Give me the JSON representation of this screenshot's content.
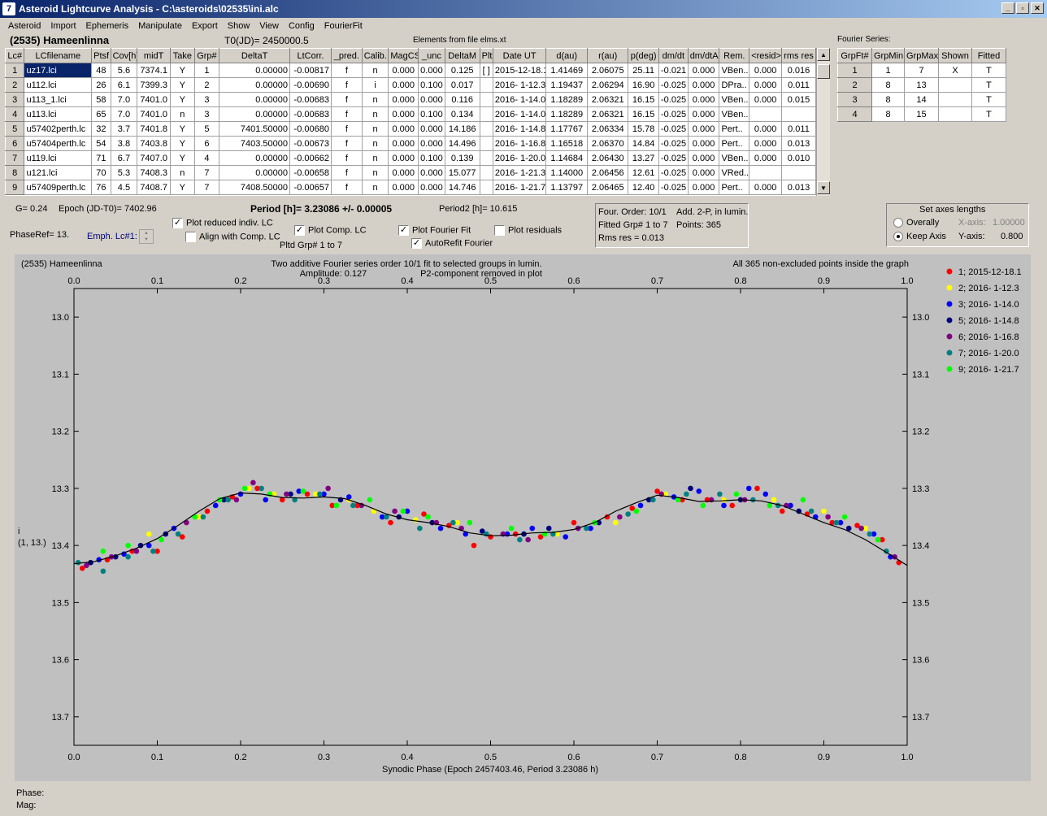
{
  "window": {
    "title": "Asteroid Lightcurve Analysis - C:\\asteroids\\02535\\ini.alc",
    "icon_label": "7",
    "btn_min": "_",
    "btn_max": "▫",
    "btn_close": "✕"
  },
  "menu": [
    "Asteroid",
    "Import",
    "Ephemeris",
    "Manipulate",
    "Export",
    "Show",
    "View",
    "Config",
    "FourierFit"
  ],
  "header": {
    "asteroid": "(2535) Hameenlinna",
    "t0": "T0(JD)= 2450000.5",
    "elements": "Elements from file elms.xt"
  },
  "lc_table": {
    "columns": [
      "Lc#",
      "LCfilename",
      "Ptsf",
      "Cov[h]",
      "midT",
      "Take",
      "Grp#",
      "DeltaT",
      "LtCorr.",
      "_pred.",
      "Calib.",
      "MagCS",
      "_unc",
      "DeltaM",
      "Plt",
      "Date UT",
      "d(au)",
      "r(au)",
      "p(deg)",
      "dm/dt",
      "dm/dtA",
      "Rem.",
      "<resid>",
      "rms res"
    ],
    "rows": [
      [
        "1",
        "uz17.lci",
        "48",
        "5.6",
        "7374.1",
        "Y",
        "1",
        "0.00000",
        "-0.00817",
        "f",
        "n",
        "0.000",
        "0.000",
        "0.125",
        "[ ]",
        "2015-12-18.1",
        "1.41469",
        "2.06075",
        "25.11",
        "-0.021",
        "0.000",
        "VBen..",
        "0.000",
        "0.016"
      ],
      [
        "2",
        "u112.lci",
        "26",
        "6.1",
        "7399.3",
        "Y",
        "2",
        "0.00000",
        "-0.00690",
        "f",
        "i",
        "0.000",
        "0.100",
        "0.017",
        "",
        "2016- 1-12.3",
        "1.19437",
        "2.06294",
        "16.90",
        "-0.025",
        "0.000",
        "DPra..",
        "0.000",
        "0.011"
      ],
      [
        "3",
        "u113_1.lci",
        "58",
        "7.0",
        "7401.0",
        "Y",
        "3",
        "0.00000",
        "-0.00683",
        "f",
        "n",
        "0.000",
        "0.000",
        "0.116",
        "",
        "2016- 1-14.0",
        "1.18289",
        "2.06321",
        "16.15",
        "-0.025",
        "0.000",
        "VBen..",
        "0.000",
        "0.015"
      ],
      [
        "4",
        "u113.lci",
        "65",
        "7.0",
        "7401.0",
        "n",
        "3",
        "0.00000",
        "-0.00683",
        "f",
        "n",
        "0.000",
        "0.100",
        "0.134",
        "",
        "2016- 1-14.0",
        "1.18289",
        "2.06321",
        "16.15",
        "-0.025",
        "0.000",
        "VBen..",
        "",
        ""
      ],
      [
        "5",
        "u57402perth.lc",
        "32",
        "3.7",
        "7401.8",
        "Y",
        "5",
        "7401.50000",
        "-0.00680",
        "f",
        "n",
        "0.000",
        "0.000",
        "14.186",
        "",
        "2016- 1-14.8",
        "1.17767",
        "2.06334",
        "15.78",
        "-0.025",
        "0.000",
        "Pert..",
        "0.000",
        "0.011"
      ],
      [
        "6",
        "u57404perth.lc",
        "54",
        "3.8",
        "7403.8",
        "Y",
        "6",
        "7403.50000",
        "-0.00673",
        "f",
        "n",
        "0.000",
        "0.000",
        "14.496",
        "",
        "2016- 1-16.8",
        "1.16518",
        "2.06370",
        "14.84",
        "-0.025",
        "0.000",
        "Pert..",
        "0.000",
        "0.013"
      ],
      [
        "7",
        "u119.lci",
        "71",
        "6.7",
        "7407.0",
        "Y",
        "4",
        "0.00000",
        "-0.00662",
        "f",
        "n",
        "0.000",
        "0.100",
        "0.139",
        "",
        "2016- 1-20.0",
        "1.14684",
        "2.06430",
        "13.27",
        "-0.025",
        "0.000",
        "VBen..",
        "0.000",
        "0.010"
      ],
      [
        "8",
        "u121.lci",
        "70",
        "5.3",
        "7408.3",
        "n",
        "7",
        "0.00000",
        "-0.00658",
        "f",
        "n",
        "0.000",
        "0.000",
        "15.077",
        "",
        "2016- 1-21.3",
        "1.14000",
        "2.06456",
        "12.61",
        "-0.025",
        "0.000",
        "VRed..",
        "",
        ""
      ],
      [
        "9",
        "u57409perth.lc",
        "76",
        "4.5",
        "7408.7",
        "Y",
        "7",
        "7408.50000",
        "-0.00657",
        "f",
        "n",
        "0.000",
        "0.000",
        "14.746",
        "",
        "2016- 1-21.7",
        "1.13797",
        "2.06465",
        "12.40",
        "-0.025",
        "0.000",
        "Pert..",
        "0.000",
        "0.013"
      ]
    ]
  },
  "fourier_series": {
    "label": "Fourier Series:",
    "columns": [
      "GrpFt#",
      "GrpMin",
      "GrpMax",
      "Shown",
      "Fitted"
    ],
    "rows": [
      [
        "1",
        "1",
        "7",
        "X",
        "T"
      ],
      [
        "2",
        "8",
        "13",
        "",
        "T"
      ],
      [
        "3",
        "8",
        "14",
        "",
        "T"
      ],
      [
        "4",
        "8",
        "15",
        "",
        "T"
      ]
    ]
  },
  "params": {
    "g": "G= 0.24",
    "epoch": "Epoch (JD-T0)= 7402.96",
    "period": "Period [h]= 3.23086 +/- 0.00005",
    "period2": "Period2 [h]= 10.615",
    "phaseref": "PhaseRef= 13.",
    "emph": "Emph. Lc#1:",
    "pltd_grp": "Pltd Grp#  1   to   7"
  },
  "options": {
    "plot_reduced": {
      "label": "Plot reduced indiv. LC",
      "checked": true
    },
    "align_comp": {
      "label": "Align with Comp. LC",
      "checked": false
    },
    "plot_comp": {
      "label": "Plot Comp. LC",
      "checked": true
    },
    "plot_fourier": {
      "label": "Plot Fourier Fit",
      "checked": true
    },
    "autorefit": {
      "label": "AutoRefit Fourier",
      "checked": true
    },
    "plot_residuals": {
      "label": "Plot residuals",
      "checked": false
    }
  },
  "fit_info": {
    "order": "Four. Order: 10/1",
    "add": "Add. 2-P, in lumin.",
    "fitted": "Fitted Grp# 1 to 7",
    "points": "Points: 365",
    "rms": "Rms res     = 0.013"
  },
  "axes": {
    "title": "Set axes lengths",
    "overally": "Overally",
    "keep": "Keep Axis",
    "xaxis_label": "X-axis:",
    "xaxis_val": "1.00000",
    "yaxis_label": "Y-axis:",
    "yaxis_val": "0.800",
    "mode": "keep"
  },
  "status": {
    "phase": "Phase:",
    "mag": "Mag:"
  },
  "chart_data": {
    "type": "scatter",
    "corner_title": "(2535) Hameenlinna",
    "title_line1": "Two additive Fourier series order 10/1 fit to selected groups in lumin.",
    "title_line2": "Amplitude: 0.127",
    "title_line3": "P2-component removed in plot",
    "note": "All 365 non-excluded points inside the graph",
    "xlabel": "Synodic Phase (Epoch 2457403.46, Period 3.23086 h)",
    "ylabel_line1": "i",
    "ylabel_line2": "(1, 13.)",
    "xlim": [
      0.0,
      1.0
    ],
    "ylim": [
      13.75,
      12.95
    ],
    "y_reversed": true,
    "xticks": [
      "0.0",
      "0.1",
      "0.2",
      "0.3",
      "0.4",
      "0.5",
      "0.6",
      "0.7",
      "0.8",
      "0.9",
      "1.0"
    ],
    "yticks": [
      "13.0",
      "13.1",
      "13.2",
      "13.3",
      "13.4",
      "13.5",
      "13.6",
      "13.7"
    ],
    "grid": false,
    "legend_position": "right",
    "background": "#c0c0c0",
    "fourier_curve": {
      "x": [
        0.0,
        0.025,
        0.05,
        0.075,
        0.1,
        0.125,
        0.15,
        0.175,
        0.2,
        0.225,
        0.25,
        0.275,
        0.3,
        0.325,
        0.35,
        0.375,
        0.4,
        0.425,
        0.45,
        0.475,
        0.5,
        0.525,
        0.55,
        0.575,
        0.6,
        0.625,
        0.65,
        0.675,
        0.7,
        0.725,
        0.75,
        0.775,
        0.8,
        0.825,
        0.85,
        0.875,
        0.9,
        0.925,
        0.95,
        0.975,
        1.0
      ],
      "y": [
        13.432,
        13.428,
        13.418,
        13.405,
        13.388,
        13.365,
        13.34,
        13.318,
        13.308,
        13.31,
        13.316,
        13.317,
        13.315,
        13.318,
        13.33,
        13.345,
        13.355,
        13.36,
        13.367,
        13.378,
        13.383,
        13.382,
        13.378,
        13.377,
        13.372,
        13.36,
        13.34,
        13.325,
        13.312,
        13.316,
        13.323,
        13.322,
        13.32,
        13.322,
        13.33,
        13.345,
        13.36,
        13.372,
        13.39,
        13.412,
        13.435
      ]
    },
    "series": [
      {
        "name": "1; 2015-12-18.1",
        "color": "#ff0000",
        "x": [
          0.01,
          0.04,
          0.07,
          0.1,
          0.13,
          0.16,
          0.19,
          0.22,
          0.25,
          0.28,
          0.31,
          0.34,
          0.38,
          0.42,
          0.45,
          0.48,
          0.5,
          0.53,
          0.56,
          0.6,
          0.64,
          0.67,
          0.7,
          0.73,
          0.76,
          0.79,
          0.82,
          0.85,
          0.88,
          0.91,
          0.94,
          0.97,
          0.99
        ],
        "y": [
          13.44,
          13.425,
          13.41,
          13.41,
          13.385,
          13.34,
          13.315,
          13.3,
          13.32,
          13.31,
          13.33,
          13.33,
          13.36,
          13.345,
          13.365,
          13.4,
          13.385,
          13.38,
          13.385,
          13.36,
          13.35,
          13.335,
          13.305,
          13.32,
          13.32,
          13.33,
          13.3,
          13.34,
          13.345,
          13.36,
          13.365,
          13.39,
          13.43
        ]
      },
      {
        "name": "2; 2016- 1-12.3",
        "color": "#ffff00",
        "x": [
          0.09,
          0.15,
          0.21,
          0.24,
          0.29,
          0.33,
          0.36,
          0.41,
          0.46,
          0.58,
          0.65,
          0.71,
          0.78,
          0.84,
          0.9,
          0.95
        ],
        "y": [
          13.38,
          13.35,
          13.3,
          13.31,
          13.31,
          13.32,
          13.34,
          13.355,
          13.36,
          13.38,
          13.36,
          13.31,
          13.32,
          13.32,
          13.34,
          13.37
        ]
      },
      {
        "name": "3; 2016- 1-14.0",
        "color": "#0000ff",
        "x": [
          0.03,
          0.06,
          0.09,
          0.12,
          0.17,
          0.2,
          0.23,
          0.27,
          0.3,
          0.33,
          0.37,
          0.4,
          0.44,
          0.47,
          0.52,
          0.55,
          0.59,
          0.62,
          0.68,
          0.72,
          0.75,
          0.78,
          0.81,
          0.83,
          0.86,
          0.89,
          0.92,
          0.96,
          0.98
        ],
        "y": [
          13.425,
          13.415,
          13.4,
          13.37,
          13.33,
          13.31,
          13.32,
          13.305,
          13.31,
          13.315,
          13.35,
          13.34,
          13.37,
          13.38,
          13.38,
          13.37,
          13.385,
          13.37,
          13.33,
          13.315,
          13.305,
          13.33,
          13.3,
          13.31,
          13.33,
          13.35,
          13.36,
          13.38,
          13.42
        ]
      },
      {
        "name": "5; 2016- 1-14.8",
        "color": "#000080",
        "x": [
          0.02,
          0.05,
          0.08,
          0.11,
          0.18,
          0.26,
          0.32,
          0.39,
          0.43,
          0.49,
          0.54,
          0.57,
          0.63,
          0.69,
          0.74,
          0.8,
          0.87,
          0.93
        ],
        "y": [
          13.43,
          13.42,
          13.4,
          13.38,
          13.32,
          13.31,
          13.32,
          13.35,
          13.36,
          13.375,
          13.38,
          13.37,
          13.36,
          13.32,
          13.3,
          13.32,
          13.34,
          13.37
        ]
      },
      {
        "name": "6; 2016- 1-16.8",
        "color": "#800080",
        "x": [
          0.015,
          0.045,
          0.075,
          0.135,
          0.195,
          0.215,
          0.255,
          0.305,
          0.345,
          0.385,
          0.435,
          0.465,
          0.515,
          0.545,
          0.605,
          0.655,
          0.705,
          0.765,
          0.805,
          0.855,
          0.905,
          0.945,
          0.985
        ],
        "y": [
          13.435,
          13.42,
          13.41,
          13.36,
          13.32,
          13.29,
          13.31,
          13.3,
          13.33,
          13.34,
          13.36,
          13.37,
          13.38,
          13.39,
          13.37,
          13.35,
          13.31,
          13.32,
          13.32,
          13.33,
          13.35,
          13.37,
          13.42
        ]
      },
      {
        "name": "7; 2016- 1-20.0",
        "color": "#008080",
        "x": [
          0.005,
          0.035,
          0.065,
          0.095,
          0.125,
          0.155,
          0.185,
          0.225,
          0.265,
          0.295,
          0.335,
          0.375,
          0.415,
          0.455,
          0.495,
          0.535,
          0.575,
          0.615,
          0.665,
          0.695,
          0.735,
          0.775,
          0.815,
          0.845,
          0.885,
          0.915,
          0.955,
          0.975
        ],
        "y": [
          13.43,
          13.445,
          13.42,
          13.41,
          13.38,
          13.35,
          13.32,
          13.3,
          13.32,
          13.31,
          13.33,
          13.35,
          13.37,
          13.36,
          13.38,
          13.39,
          13.38,
          13.37,
          13.345,
          13.32,
          13.31,
          13.31,
          13.32,
          13.33,
          13.34,
          13.36,
          13.38,
          13.41
        ]
      },
      {
        "name": "9; 2016- 1-21.7",
        "color": "#00ff00",
        "x": [
          0.035,
          0.065,
          0.105,
          0.145,
          0.175,
          0.205,
          0.235,
          0.275,
          0.315,
          0.355,
          0.395,
          0.425,
          0.475,
          0.525,
          0.565,
          0.625,
          0.675,
          0.725,
          0.755,
          0.795,
          0.835,
          0.875,
          0.925,
          0.965
        ],
        "y": [
          13.41,
          13.4,
          13.39,
          13.35,
          13.32,
          13.3,
          13.31,
          13.305,
          13.33,
          13.32,
          13.34,
          13.35,
          13.36,
          13.37,
          13.38,
          13.36,
          13.34,
          13.32,
          13.33,
          13.31,
          13.33,
          13.32,
          13.35,
          13.39
        ]
      }
    ]
  }
}
